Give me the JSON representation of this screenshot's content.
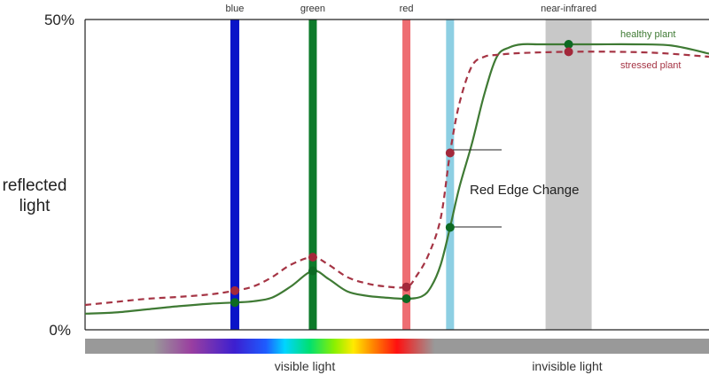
{
  "chart_data": {
    "type": "line",
    "ylabel_lines": [
      "reflected",
      "light"
    ],
    "yticks": [
      "50%",
      "0%"
    ],
    "ylim": [
      0,
      50
    ],
    "x_domain": [
      0,
      100
    ],
    "bands": [
      {
        "label": "blue",
        "x": 24,
        "color": "#0a14c8"
      },
      {
        "label": "green",
        "x": 36.5,
        "color": "#0d7a2a"
      },
      {
        "label": "red",
        "x": 51.5,
        "color": "#ee6d72"
      },
      {
        "label": "",
        "x": 58.5,
        "color": "#8dcfe3"
      },
      {
        "label": "near-infrared",
        "x": 77.5,
        "color": "#c8c8c8"
      }
    ],
    "series": [
      {
        "name": "healthy plant",
        "color": "#3f7a34",
        "dash": false,
        "x": [
          0,
          5,
          10,
          15,
          20,
          24,
          27,
          30,
          33,
          36.5,
          39,
          42,
          45,
          48,
          51.5,
          54,
          55.5,
          57,
          58.5,
          60,
          62,
          64,
          66,
          68,
          70,
          73,
          77.5,
          82,
          88,
          94,
          100
        ],
        "values": [
          2.6,
          2.8,
          3.3,
          3.8,
          4.2,
          4.4,
          4.6,
          5.2,
          7.0,
          9.5,
          8.2,
          6.2,
          5.5,
          5.2,
          5.0,
          5.4,
          7.0,
          10.5,
          16.5,
          23.0,
          30.0,
          38.0,
          44.0,
          45.5,
          46.0,
          46.0,
          46.0,
          46.0,
          46.0,
          45.8,
          44.5
        ]
      },
      {
        "name": "stressed plant",
        "color": "#a53444",
        "dash": true,
        "x": [
          0,
          5,
          10,
          15,
          20,
          24,
          27,
          30,
          33,
          36.5,
          39,
          42,
          45,
          48,
          51.5,
          53,
          55,
          57,
          58.5,
          60,
          62,
          64,
          66,
          70,
          77.5,
          85,
          92,
          100
        ],
        "values": [
          4.0,
          4.5,
          5.0,
          5.3,
          5.7,
          6.3,
          7.0,
          8.5,
          10.5,
          11.7,
          10.5,
          8.5,
          7.5,
          7.0,
          6.9,
          8.5,
          12.0,
          18.0,
          28.5,
          36.5,
          42.5,
          44.0,
          44.3,
          44.6,
          44.8,
          44.8,
          44.6,
          44.0
        ]
      }
    ],
    "markers": [
      {
        "series": "healthy plant",
        "x": 24,
        "y": 4.4
      },
      {
        "series": "healthy plant",
        "x": 36.5,
        "y": 9.5
      },
      {
        "series": "healthy plant",
        "x": 51.5,
        "y": 5.0
      },
      {
        "series": "healthy plant",
        "x": 58.5,
        "y": 16.5
      },
      {
        "series": "healthy plant",
        "x": 77.5,
        "y": 46.0
      },
      {
        "series": "stressed plant",
        "x": 24,
        "y": 6.3
      },
      {
        "series": "stressed plant",
        "x": 36.5,
        "y": 11.7
      },
      {
        "series": "stressed plant",
        "x": 51.5,
        "y": 6.9
      },
      {
        "series": "stressed plant",
        "x": 58.5,
        "y": 28.5
      },
      {
        "series": "stressed plant",
        "x": 77.5,
        "y": 44.8
      }
    ],
    "annotation": "Red Edge Change",
    "spectrum": {
      "visible_label": "visible light",
      "invisible_label": "invisible light",
      "gray": "#999999"
    }
  }
}
